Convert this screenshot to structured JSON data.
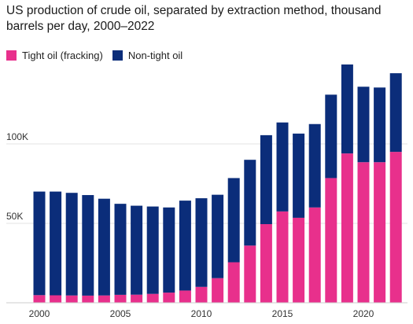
{
  "title": "US production of crude oil, separated by extraction method, thousand barrels per day, 2000–2022",
  "legend": [
    {
      "label": "Tight oil (fracking)",
      "color": "#e8308c"
    },
    {
      "label": "Non-tight oil",
      "color": "#0b2d7a"
    }
  ],
  "chart_data": {
    "type": "bar",
    "stacked": true,
    "categories": [
      "2000",
      "2001",
      "2002",
      "2003",
      "2004",
      "2005",
      "2006",
      "2007",
      "2008",
      "2009",
      "2010",
      "2011",
      "2012",
      "2013",
      "2014",
      "2015",
      "2016",
      "2017",
      "2018",
      "2019",
      "2020",
      "2021",
      "2022"
    ],
    "x_tick_labels": [
      "2000",
      "2005",
      "2010",
      "2015",
      "2020"
    ],
    "y_tick_labels": [
      "50K",
      "100K"
    ],
    "y_ticks": [
      50000,
      100000
    ],
    "ylim": [
      0,
      150000
    ],
    "grid": true,
    "legend_position": "top-left",
    "series": [
      {
        "name": "Tight oil (fracking)",
        "color": "#e8308c",
        "values": [
          4800,
          4700,
          4600,
          4500,
          4600,
          5000,
          5100,
          5600,
          6400,
          7700,
          10000,
          15500,
          25500,
          36000,
          49500,
          57500,
          53500,
          60000,
          78500,
          94000,
          88500,
          88500,
          95000
        ]
      },
      {
        "name": "Non-tight oil",
        "color": "#0b2d7a",
        "values": [
          65200,
          65300,
          64600,
          63300,
          60900,
          57300,
          56000,
          55000,
          53600,
          56600,
          55800,
          52500,
          53000,
          54000,
          56000,
          56000,
          53000,
          52500,
          52500,
          56000,
          47500,
          47000,
          49500
        ]
      }
    ]
  }
}
